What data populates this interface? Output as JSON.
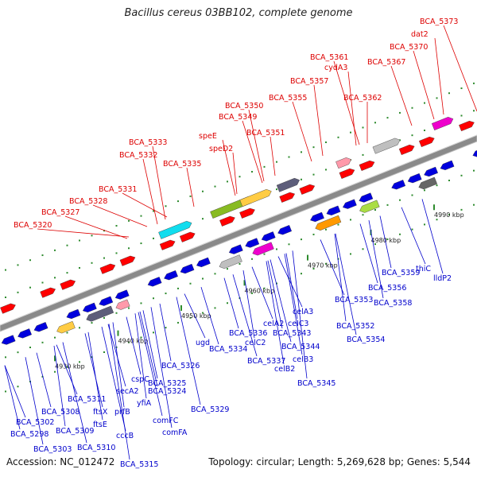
{
  "title": "Bacillus cereus 03BB102, complete genome",
  "footer": {
    "accession": "Accession: NC_012472",
    "summary": "Topology: circular; Length: 5,269,628 bp; Genes: 5,544"
  },
  "colors": {
    "forward_label": "#dd0000",
    "reverse_label": "#0000cc",
    "axis": "#8a8a8a",
    "tick": "#2e8b2e"
  },
  "kbp_labels": [
    "4930 kbp",
    "4940 kbp",
    "4950 kbp",
    "4960 kbp",
    "4970 kbp",
    "4980 kbp",
    "4990 kbp"
  ],
  "forward_labels": [
    "BCA_5320",
    "BCA_5327",
    "BCA_5328",
    "BCA_5331",
    "BCA_5332",
    "BCA_5333",
    "BCA_5335",
    "speE",
    "speD2",
    "BCA_5350",
    "BCA_5349",
    "BCA_5351",
    "BCA_5355",
    "BCA_5357",
    "cydA3",
    "BCA_5361",
    "BCA_5362",
    "BCA_5367",
    "BCA_5370",
    "dat2",
    "BCA_5373"
  ],
  "reverse_labels": [
    "BCA_5298",
    "BCA_5302",
    "BCA_5303",
    "BCA_5308",
    "BCA_5309",
    "BCA_5310",
    "BCA_5311",
    "ftsX",
    "ftsE",
    "prfB",
    "cccB",
    "BCA_5315",
    "secA2",
    "cspC",
    "yfiA",
    "comFC",
    "comFA",
    "BCA_5324",
    "BCA_5325",
    "BCA_5326",
    "BCA_5329",
    "ugd",
    "BCA_5334",
    "BCA_5336",
    "celC2",
    "BCA_5337",
    "celA2",
    "celB2",
    "BCA_5343",
    "celC3",
    "celA3",
    "BCA_5344",
    "celB3",
    "BCA_5345",
    "BCA_5352",
    "BCA_5353",
    "BCA_5354",
    "BCA_5356",
    "BCA_5358",
    "BCA_5359",
    "thiC",
    "lldP2"
  ]
}
